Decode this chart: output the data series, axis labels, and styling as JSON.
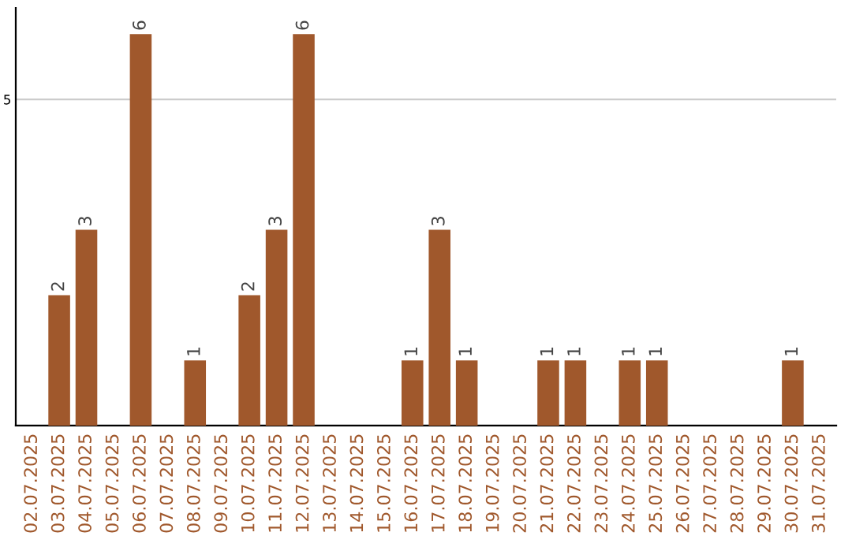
{
  "chart_data": {
    "type": "bar",
    "categories": [
      "02.07.2025",
      "03.07.2025",
      "04.07.2025",
      "05.07.2025",
      "06.07.2025",
      "07.07.2025",
      "08.07.2025",
      "09.07.2025",
      "10.07.2025",
      "11.07.2025",
      "12.07.2025",
      "13.07.2025",
      "14.07.2025",
      "15.07.2025",
      "16.07.2025",
      "17.07.2025",
      "18.07.2025",
      "19.07.2025",
      "20.07.2025",
      "21.07.2025",
      "22.07.2025",
      "23.07.2025",
      "24.07.2025",
      "25.07.2025",
      "26.07.2025",
      "27.07.2025",
      "28.07.2025",
      "29.07.2025",
      "30.07.2025",
      "31.07.2025"
    ],
    "values": [
      0,
      2,
      3,
      0,
      6,
      0,
      1,
      0,
      2,
      3,
      6,
      0,
      0,
      0,
      1,
      3,
      1,
      0,
      0,
      1,
      1,
      0,
      1,
      1,
      0,
      0,
      0,
      0,
      1,
      0
    ],
    "value_labels": [
      null,
      "2",
      "3",
      null,
      "6",
      null,
      "1",
      null,
      "2",
      "3",
      "6",
      null,
      null,
      null,
      "1",
      "3",
      "1",
      null,
      null,
      "1",
      "1",
      null,
      "1",
      "1",
      null,
      null,
      null,
      null,
      "1",
      null
    ],
    "color": "#a0582c",
    "ylim": [
      0,
      6.4
    ],
    "yticks": [
      5
    ],
    "grid": "y"
  }
}
